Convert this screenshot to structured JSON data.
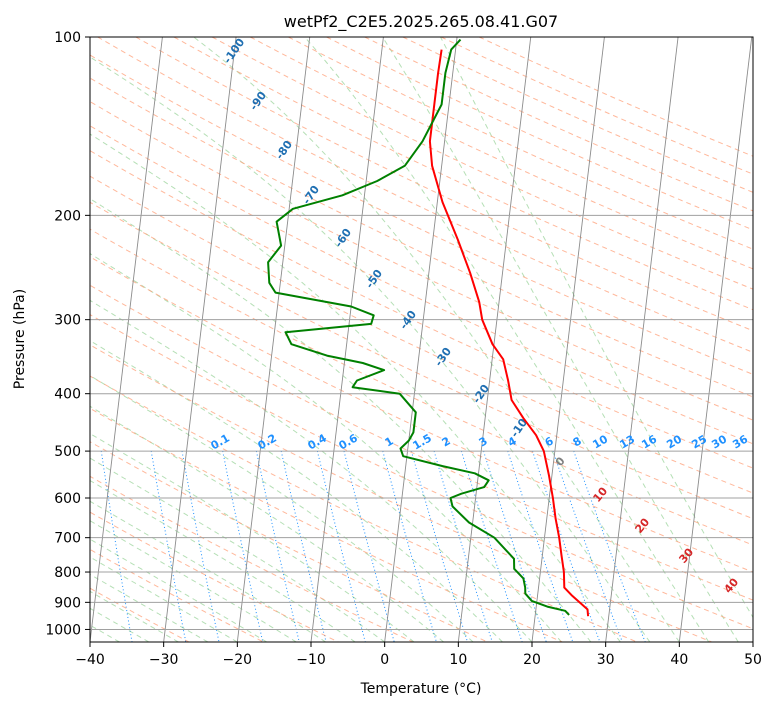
{
  "chart_data": {
    "type": "line",
    "subtype": "skew-T log-P diagram",
    "title": "wetPf2_C2E5.2025.265.08.41.G07",
    "xlabel": "Temperature (°C)",
    "ylabel": "Pressure (hPa)",
    "xlim": [
      -40,
      50
    ],
    "ylim": [
      1050,
      100
    ],
    "xticks": [
      -40,
      -30,
      -20,
      -10,
      0,
      10,
      20,
      30,
      40,
      50
    ],
    "yticks": [
      100,
      200,
      300,
      400,
      500,
      600,
      700,
      800,
      900,
      1000
    ],
    "grid": true,
    "series": [
      {
        "name": "Temperature",
        "color": "#ff0000",
        "points": [
          [
            950,
            27.2
          ],
          [
            925,
            27.0
          ],
          [
            900,
            25.8
          ],
          [
            875,
            24.6
          ],
          [
            850,
            23.5
          ],
          [
            800,
            23.2
          ],
          [
            750,
            22.6
          ],
          [
            700,
            22.0
          ],
          [
            650,
            21.2
          ],
          [
            600,
            20.5
          ],
          [
            550,
            19.6
          ],
          [
            500,
            18.5
          ],
          [
            470,
            17.2
          ],
          [
            440,
            15.2
          ],
          [
            410,
            13.3
          ],
          [
            380,
            12.5
          ],
          [
            350,
            11.5
          ],
          [
            330,
            9.8
          ],
          [
            300,
            8.0
          ],
          [
            280,
            7.3
          ],
          [
            250,
            5.6
          ],
          [
            220,
            3.4
          ],
          [
            190,
            0.7
          ],
          [
            165,
            -1.3
          ],
          [
            150,
            -2.0
          ],
          [
            130,
            -2.0
          ],
          [
            115,
            -2.0
          ],
          [
            105,
            -1.9
          ]
        ]
      },
      {
        "name": "Dewpoint",
        "color": "#008000",
        "points": [
          [
            945,
            24.6
          ],
          [
            930,
            24.0
          ],
          [
            915,
            21.5
          ],
          [
            895,
            19.3
          ],
          [
            870,
            18.3
          ],
          [
            850,
            18.2
          ],
          [
            820,
            17.8
          ],
          [
            790,
            16.4
          ],
          [
            760,
            16.2
          ],
          [
            700,
            13.2
          ],
          [
            660,
            9.5
          ],
          [
            620,
            7.0
          ],
          [
            600,
            6.6
          ],
          [
            590,
            8.0
          ],
          [
            575,
            11.0
          ],
          [
            560,
            11.5
          ],
          [
            545,
            9.5
          ],
          [
            530,
            5.0
          ],
          [
            510,
            -0.5
          ],
          [
            495,
            -1.0
          ],
          [
            480,
            0.0
          ],
          [
            465,
            0.5
          ],
          [
            450,
            0.5
          ],
          [
            430,
            0.5
          ],
          [
            400,
            -2.0
          ],
          [
            390,
            -8.5
          ],
          [
            380,
            -8.0
          ],
          [
            365,
            -4.5
          ],
          [
            355,
            -7.5
          ],
          [
            345,
            -12.5
          ],
          [
            330,
            -17.5
          ],
          [
            315,
            -18.5
          ],
          [
            305,
            -7.0
          ],
          [
            295,
            -6.8
          ],
          [
            285,
            -10.0
          ],
          [
            270,
            -20.5
          ],
          [
            260,
            -21.5
          ],
          [
            240,
            -22.0
          ],
          [
            225,
            -20.5
          ],
          [
            205,
            -21.5
          ],
          [
            195,
            -19.5
          ],
          [
            185,
            -13.0
          ],
          [
            175,
            -8.5
          ],
          [
            165,
            -5.0
          ],
          [
            150,
            -3.0
          ],
          [
            130,
            -1.0
          ],
          [
            115,
            -1.0
          ],
          [
            105,
            -0.6
          ],
          [
            101,
            0.5
          ]
        ]
      }
    ],
    "isotherms_label": [],
    "dry_adiabats_labels": [
      "-100",
      "-90",
      "-80",
      "-70",
      "-60",
      "-50",
      "-40",
      "-30",
      "-20",
      "-10"
    ],
    "moist_adiabat_labels": [
      "0",
      "10",
      "20",
      "30",
      "40"
    ],
    "mixing_ratio_labels": [
      "0.1",
      "0.2",
      "0.4",
      "0.6",
      "1",
      "1.5",
      "2",
      "3",
      "4",
      "6",
      "8",
      "10",
      "13",
      "16",
      "20",
      "25",
      "30",
      "36"
    ]
  }
}
